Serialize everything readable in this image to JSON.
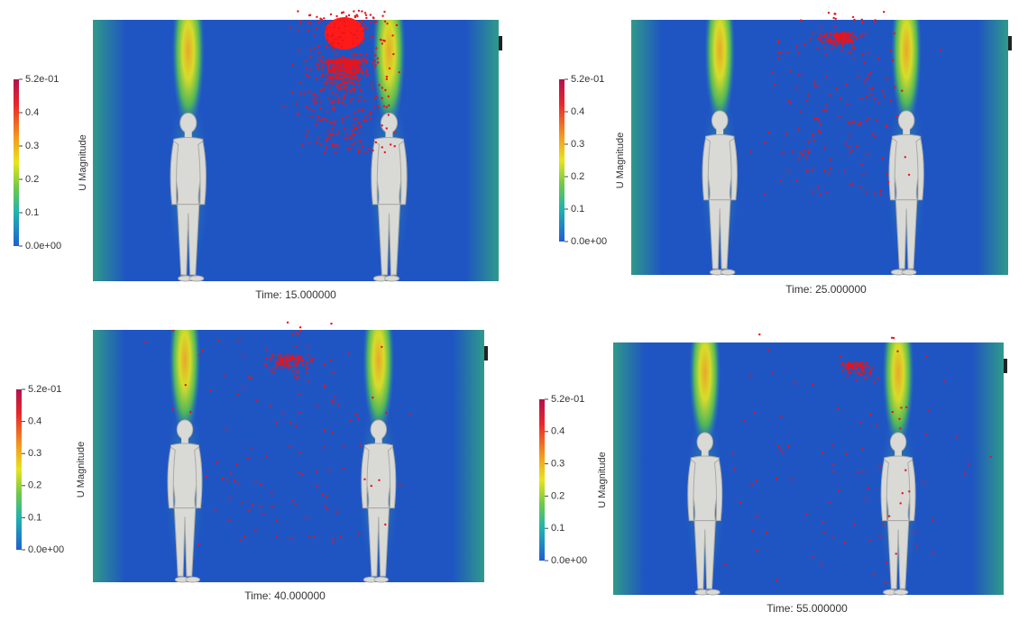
{
  "panels": [
    {
      "colorbar": {
        "title": "U Magnitude",
        "tick_labels": [
          "5.2e-01",
          "0.4",
          "0.3",
          "0.2",
          "0.1",
          "0.0e+00"
        ]
      },
      "time_label": "Time: 15.000000"
    },
    {
      "colorbar": {
        "title": "U Magnitude",
        "tick_labels": [
          "5.2e-01",
          "0.4",
          "0.3",
          "0.2",
          "0.1",
          "0.0e+00"
        ]
      },
      "time_label": "Time: 25.000000"
    },
    {
      "colorbar": {
        "title": "U Magnitude",
        "tick_labels": [
          "5.2e-01",
          "0.4",
          "0.3",
          "0.2",
          "0.1",
          "0.0e+00"
        ]
      },
      "time_label": "Time: 40.000000"
    },
    {
      "colorbar": {
        "title": "U Magnitude",
        "tick_labels": [
          "5.2e-01",
          "0.4",
          "0.3",
          "0.2",
          "0.1",
          "0.0e+00"
        ]
      },
      "time_label": "Time: 55.000000"
    }
  ]
}
